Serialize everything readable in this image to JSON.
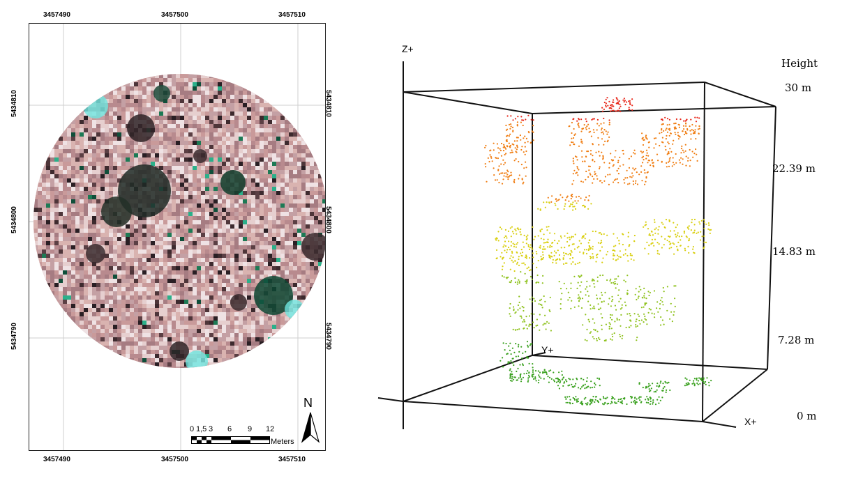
{
  "map": {
    "x_ticks": [
      "3457490",
      "3457500",
      "3457510"
    ],
    "y_ticks": [
      "5434810",
      "5434800",
      "5434790"
    ],
    "scale_bar": {
      "ticks": [
        "0",
        "1,5",
        "3",
        "6",
        "9",
        "12"
      ],
      "unit": "Meters"
    },
    "north_label": "N",
    "plot_shape": "circular orthophoto, pink/white canopy with dark shadows and green/cyan patches"
  },
  "point_cloud": {
    "axes": {
      "z": "Z+",
      "y": "Y+",
      "x": "X+"
    },
    "legend": {
      "title": "Height",
      "labels": [
        "30 m",
        "22.39 m",
        "14.83 m",
        "7.28 m",
        "0 m"
      ]
    },
    "colors": {
      "top": "#e8291c",
      "upper": "#f07d12",
      "middle": "#d9cf10",
      "lower": "#8fc21e",
      "bottom": "#3aa11f"
    }
  }
}
